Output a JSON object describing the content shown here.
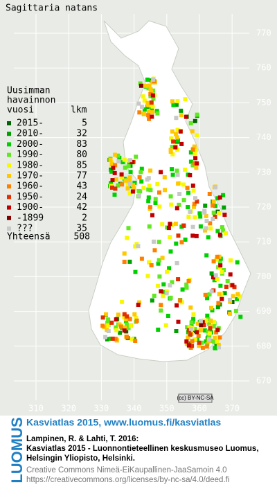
{
  "title": "Sagittaria natans",
  "legend": {
    "title_lines": [
      "Uusimman",
      "havainnon",
      "vuosi"
    ],
    "count_header": "lkm",
    "rows": [
      {
        "label": "2015-",
        "count": 5,
        "color": "#006400"
      },
      {
        "label": "2010-",
        "count": 32,
        "color": "#00a000"
      },
      {
        "label": "2000-",
        "count": 83,
        "color": "#00d000"
      },
      {
        "label": "1990-",
        "count": 80,
        "color": "#60e820"
      },
      {
        "label": "1980-",
        "count": 85,
        "color": "#f8f800"
      },
      {
        "label": "1970-",
        "count": 77,
        "color": "#ffc800"
      },
      {
        "label": "1960-",
        "count": 43,
        "color": "#ff8000"
      },
      {
        "label": "1950-",
        "count": 24,
        "color": "#e03000"
      },
      {
        "label": "1900-",
        "count": 42,
        "color": "#c00000"
      },
      {
        "label": "-1899",
        "count": 2,
        "color": "#800000"
      },
      {
        "label": "???",
        "count": 35,
        "color": "#c8c8c8"
      }
    ],
    "total_label": "Yhteensä",
    "total": 508
  },
  "map": {
    "x_labels": [
      310,
      320,
      330,
      340,
      350,
      360,
      370
    ],
    "y_labels": [
      770,
      760,
      750,
      740,
      730,
      720,
      710,
      700,
      690,
      680,
      670
    ]
  },
  "license_badge": "(cc) BY-NC-SA",
  "footer": {
    "logo": "LUOMUS",
    "headline": "Kasviatlas 2015, www.luomus.fi/kasviatlas",
    "citation": [
      "Lampinen, R. & Lahti, T. 2016:",
      "Kasviatlas 2015 - Luonnontieteellinen keskusmuseo Luomus,",
      "Helsingin Yliopisto, Helsinki."
    ],
    "license": [
      "Creative Commons Nimeä-EiKaupallinen-JaaSamoin 4.0",
      "https://creativecommons.org/licenses/by-nc-sa/4.0/deed.fi"
    ]
  }
}
